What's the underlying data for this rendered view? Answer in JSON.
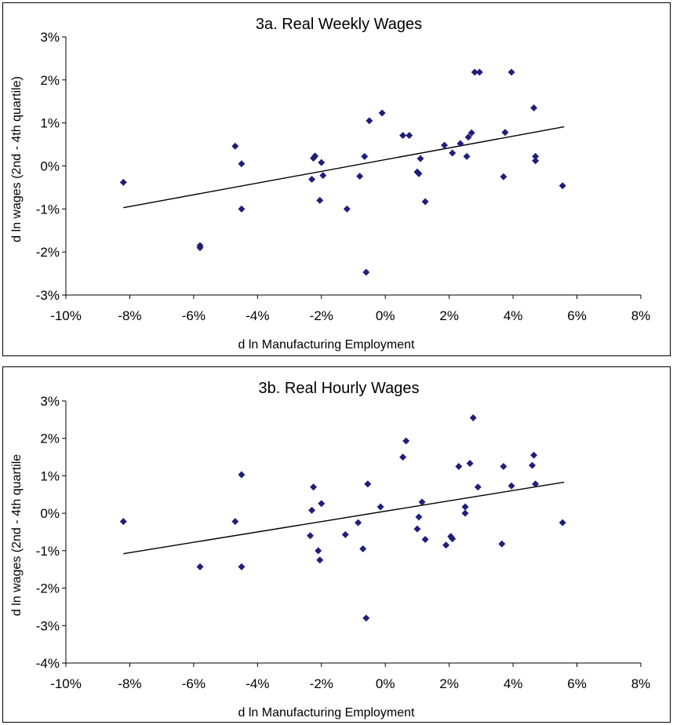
{
  "chart_data": [
    {
      "type": "scatter",
      "title": "3a. Real Weekly Wages",
      "xlabel": "d ln Manufacturing Employment",
      "ylabel": "d ln wages (2nd - 4th quartile)",
      "xlim": [
        -10,
        8
      ],
      "ylim": [
        -3,
        3
      ],
      "x_ticks": [
        "-10%",
        "-8%",
        "-6%",
        "-4%",
        "-2%",
        "0%",
        "2%",
        "4%",
        "6%",
        "8%"
      ],
      "y_ticks": [
        "3%",
        "2%",
        "1%",
        "0%",
        "-1%",
        "-2%",
        "-3%"
      ],
      "grid": false,
      "marker_color": "#1f1f7a",
      "trendline": {
        "x": [
          -8.2,
          5.6
        ],
        "y": [
          -0.97,
          0.91
        ]
      },
      "points": [
        {
          "x": -8.2,
          "y": -0.38
        },
        {
          "x": -5.8,
          "y": -1.85
        },
        {
          "x": -5.8,
          "y": -1.9
        },
        {
          "x": -4.7,
          "y": 0.46
        },
        {
          "x": -4.5,
          "y": 0.05
        },
        {
          "x": -4.5,
          "y": -1.0
        },
        {
          "x": -2.3,
          "y": -0.31
        },
        {
          "x": -2.25,
          "y": 0.18
        },
        {
          "x": -2.2,
          "y": 0.23
        },
        {
          "x": -2.05,
          "y": -0.8
        },
        {
          "x": -2.0,
          "y": 0.08
        },
        {
          "x": -1.95,
          "y": -0.22
        },
        {
          "x": -1.2,
          "y": -1.0
        },
        {
          "x": -0.8,
          "y": -0.24
        },
        {
          "x": -0.65,
          "y": 0.22
        },
        {
          "x": -0.6,
          "y": -2.47
        },
        {
          "x": -0.5,
          "y": 1.05
        },
        {
          "x": -0.1,
          "y": 1.23
        },
        {
          "x": 0.55,
          "y": 0.71
        },
        {
          "x": 0.75,
          "y": 0.71
        },
        {
          "x": 1.0,
          "y": -0.14
        },
        {
          "x": 1.05,
          "y": -0.18
        },
        {
          "x": 1.1,
          "y": 0.17
        },
        {
          "x": 1.25,
          "y": -0.83
        },
        {
          "x": 1.85,
          "y": 0.48
        },
        {
          "x": 2.1,
          "y": 0.3
        },
        {
          "x": 2.35,
          "y": 0.52
        },
        {
          "x": 2.55,
          "y": 0.22
        },
        {
          "x": 2.6,
          "y": 0.67
        },
        {
          "x": 2.7,
          "y": 0.77
        },
        {
          "x": 2.8,
          "y": 2.18
        },
        {
          "x": 2.95,
          "y": 2.18
        },
        {
          "x": 3.7,
          "y": -0.25
        },
        {
          "x": 3.75,
          "y": 0.78
        },
        {
          "x": 3.95,
          "y": 2.18
        },
        {
          "x": 4.65,
          "y": 1.35
        },
        {
          "x": 4.7,
          "y": 0.22
        },
        {
          "x": 4.7,
          "y": 0.12
        },
        {
          "x": 5.55,
          "y": -0.46
        }
      ]
    },
    {
      "type": "scatter",
      "title": "3b. Real Hourly Wages",
      "xlabel": "d ln Manufacturing Employment",
      "ylabel": "d ln wages (2nd - 4th quartile",
      "xlim": [
        -10,
        8
      ],
      "ylim": [
        -4,
        3
      ],
      "x_ticks": [
        "-10%",
        "-8%",
        "-6%",
        "-4%",
        "-2%",
        "0%",
        "2%",
        "4%",
        "6%",
        "8%"
      ],
      "y_ticks": [
        "3%",
        "2%",
        "1%",
        "0%",
        "-1%",
        "-2%",
        "-3%",
        "-4%"
      ],
      "grid": false,
      "marker_color": "#1f1f7a",
      "trendline": {
        "x": [
          -8.2,
          5.6
        ],
        "y": [
          -1.08,
          0.83
        ]
      },
      "points": [
        {
          "x": -8.2,
          "y": -0.22
        },
        {
          "x": -5.8,
          "y": -1.43
        },
        {
          "x": -4.7,
          "y": -0.22
        },
        {
          "x": -4.5,
          "y": 1.03
        },
        {
          "x": -4.5,
          "y": -1.43
        },
        {
          "x": -2.35,
          "y": -0.6
        },
        {
          "x": -2.3,
          "y": 0.08
        },
        {
          "x": -2.25,
          "y": 0.7
        },
        {
          "x": -2.1,
          "y": -1.0
        },
        {
          "x": -2.05,
          "y": -1.25
        },
        {
          "x": -2.0,
          "y": 0.26
        },
        {
          "x": -1.25,
          "y": -0.57
        },
        {
          "x": -0.85,
          "y": -0.25
        },
        {
          "x": -0.7,
          "y": -0.95
        },
        {
          "x": -0.6,
          "y": -2.8
        },
        {
          "x": -0.55,
          "y": 0.78
        },
        {
          "x": -0.15,
          "y": 0.17
        },
        {
          "x": 0.55,
          "y": 1.5
        },
        {
          "x": 0.65,
          "y": 1.93
        },
        {
          "x": 1.0,
          "y": -0.42
        },
        {
          "x": 1.05,
          "y": -0.1
        },
        {
          "x": 1.15,
          "y": 0.3
        },
        {
          "x": 1.25,
          "y": -0.7
        },
        {
          "x": 1.9,
          "y": -0.85
        },
        {
          "x": 2.05,
          "y": -0.62
        },
        {
          "x": 2.1,
          "y": -0.68
        },
        {
          "x": 2.3,
          "y": 1.25
        },
        {
          "x": 2.5,
          "y": 0.17
        },
        {
          "x": 2.5,
          "y": 0.0
        },
        {
          "x": 2.65,
          "y": 1.33
        },
        {
          "x": 2.75,
          "y": 2.55
        },
        {
          "x": 2.9,
          "y": 0.7
        },
        {
          "x": 3.65,
          "y": -0.82
        },
        {
          "x": 3.7,
          "y": 1.25
        },
        {
          "x": 3.95,
          "y": 0.73
        },
        {
          "x": 4.6,
          "y": 1.28
        },
        {
          "x": 4.65,
          "y": 1.55
        },
        {
          "x": 4.7,
          "y": 0.78
        },
        {
          "x": 5.55,
          "y": -0.25
        }
      ]
    }
  ]
}
